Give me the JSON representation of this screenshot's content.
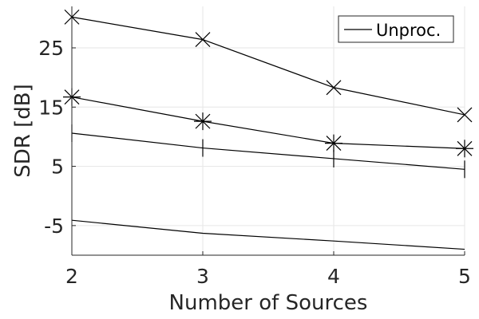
{
  "chart_data": {
    "type": "line",
    "xlabel": "Number of Sources",
    "ylabel": "SDR [dB]",
    "x": [
      2,
      3,
      4,
      5
    ],
    "xlim": [
      2,
      5
    ],
    "ylim": [
      -10,
      32
    ],
    "xticks": [
      "2",
      "3",
      "4",
      "5"
    ],
    "yticks": [
      -5,
      5,
      15,
      25
    ],
    "ytick_labels": [
      "-5",
      "5",
      "15",
      "25"
    ],
    "grid": true,
    "legend_position": "top-right",
    "series": [
      {
        "name": "",
        "marker": "x",
        "values": [
          30.2,
          26.4,
          18.3,
          13.7
        ]
      },
      {
        "name": "",
        "marker": "asterisk",
        "values": [
          16.7,
          12.6,
          8.9,
          8.0
        ]
      },
      {
        "name": "",
        "marker": "plus",
        "values": [
          10.6,
          8.1,
          6.3,
          4.5
        ]
      },
      {
        "name": "Unproc.",
        "marker": "none",
        "values": [
          -4.1,
          -6.3,
          -7.6,
          -9.0
        ]
      }
    ],
    "legend": [
      "Unproc."
    ],
    "colors": {
      "line": "#000000",
      "grid": "#e6e6e6",
      "axis": "#262626"
    }
  }
}
